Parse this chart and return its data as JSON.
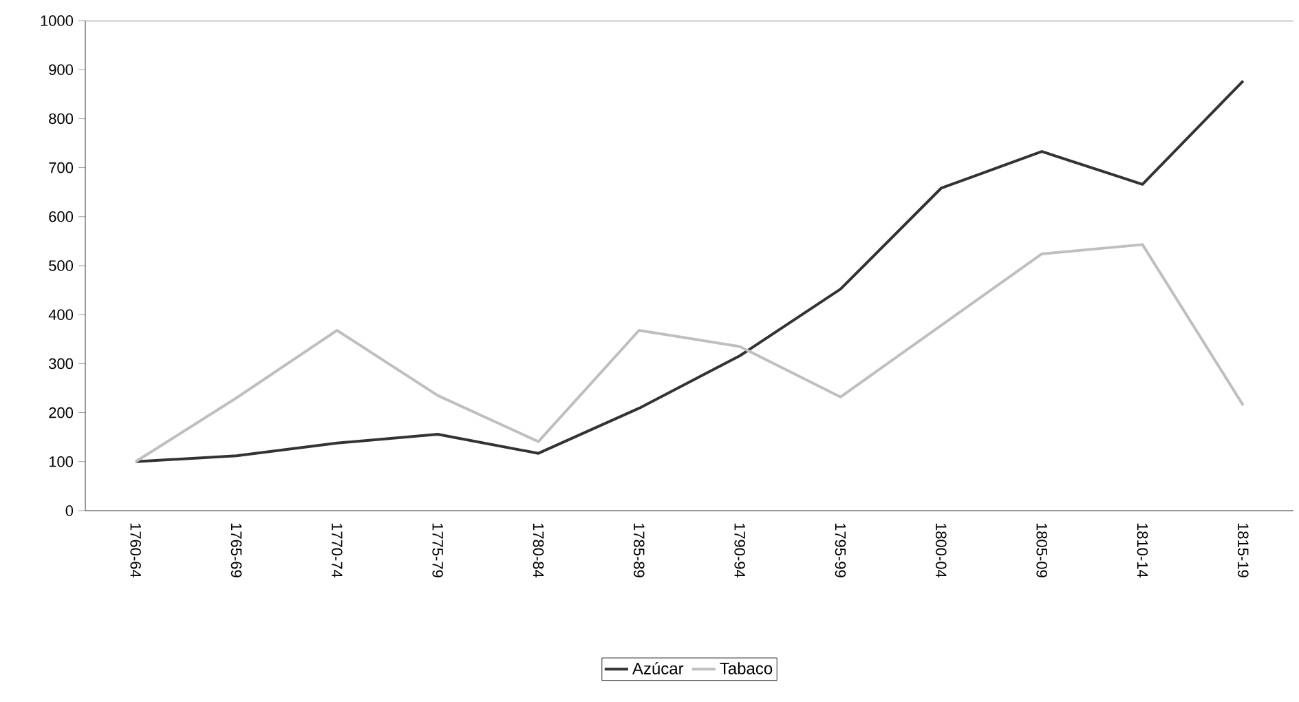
{
  "chart_data": {
    "type": "line",
    "categories": [
      "1760-64",
      "1765-69",
      "1770-74",
      "1775-79",
      "1780-84",
      "1785-89",
      "1790-94",
      "1795-99",
      "1800-04",
      "1805-09",
      "1810-14",
      "1815-19"
    ],
    "series": [
      {
        "name": "Azúcar",
        "color": "#333333",
        "values": [
          100,
          112,
          138,
          156,
          117,
          209,
          316,
          452,
          658,
          733,
          666,
          877
        ]
      },
      {
        "name": "Tabaco",
        "color": "#bfbfbf",
        "values": [
          100,
          230,
          368,
          235,
          141,
          368,
          335,
          232,
          378,
          524,
          543,
          215
        ]
      }
    ],
    "ylim": [
      0,
      1000
    ],
    "yticks": [
      0,
      100,
      200,
      300,
      400,
      500,
      600,
      700,
      800,
      900,
      1000
    ],
    "grid": false,
    "legend": "bottom",
    "marker": "none",
    "line_style": "solid"
  }
}
